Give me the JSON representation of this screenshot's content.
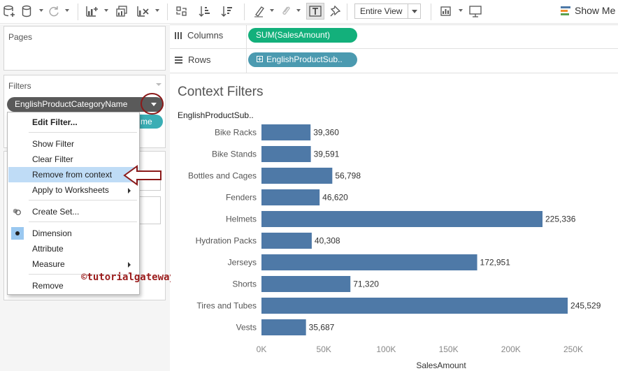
{
  "toolbar": {
    "fit_value": "Entire View",
    "show_me": "Show Me",
    "icons": [
      "new-datasource-icon",
      "datasource-icon",
      "refresh-icon",
      "new-worksheet-icon",
      "duplicate-icon",
      "clear-icon",
      "swap-icon",
      "sort-ascending-icon",
      "sort-descending-icon",
      "highlight-icon",
      "pin-icon",
      "label-icon",
      "pin-tooltip-icon",
      "show-cards-icon",
      "presentation-icon"
    ]
  },
  "panels": {
    "pages_title": "Pages",
    "filters_title": "Filters",
    "filter_pill": "EnglishProductCategoryName",
    "hidden_pill_fragment": "me"
  },
  "context_menu": {
    "items": [
      {
        "label": "Edit Filter...",
        "bold": true
      },
      {
        "label": "Show Filter"
      },
      {
        "label": "Clear Filter"
      },
      {
        "label": "Remove from context",
        "highlighted": true
      },
      {
        "label": "Apply to Worksheets",
        "submenu": true
      },
      {
        "label": "Create Set..."
      },
      {
        "label": "Dimension",
        "checked": true
      },
      {
        "label": "Attribute"
      },
      {
        "label": "Measure",
        "submenu": true
      },
      {
        "label": "Remove"
      }
    ]
  },
  "watermark": "©tutorialgateway.org",
  "shelves": {
    "columns_label": "Columns",
    "columns_pill": "SUM(SalesAmount)",
    "rows_label": "Rows",
    "rows_pill": "EnglishProductSub.."
  },
  "view": {
    "title": "Context Filters",
    "row_header": "EnglishProductSub.."
  },
  "chart_data": {
    "type": "bar",
    "orientation": "horizontal",
    "title": "Context Filters",
    "categories": [
      "Bike Racks",
      "Bike Stands",
      "Bottles and Cages",
      "Fenders",
      "Helmets",
      "Hydration Packs",
      "Jerseys",
      "Shorts",
      "Tires and Tubes",
      "Vests"
    ],
    "values": [
      39360,
      39591,
      56798,
      46620,
      225336,
      40308,
      172951,
      71320,
      245529,
      35687
    ],
    "value_labels": [
      "39,360",
      "39,591",
      "56,798",
      "46,620",
      "225,336",
      "40,308",
      "172,951",
      "71,320",
      "245,529",
      "35,687"
    ],
    "xlabel": "SalesAmount",
    "ylabel": "EnglishProductSub..",
    "xticks": [
      "0K",
      "50K",
      "100K",
      "150K",
      "200K",
      "250K"
    ],
    "xlim": [
      0,
      250000
    ],
    "bar_color": "#4e79a7",
    "grid": false
  }
}
